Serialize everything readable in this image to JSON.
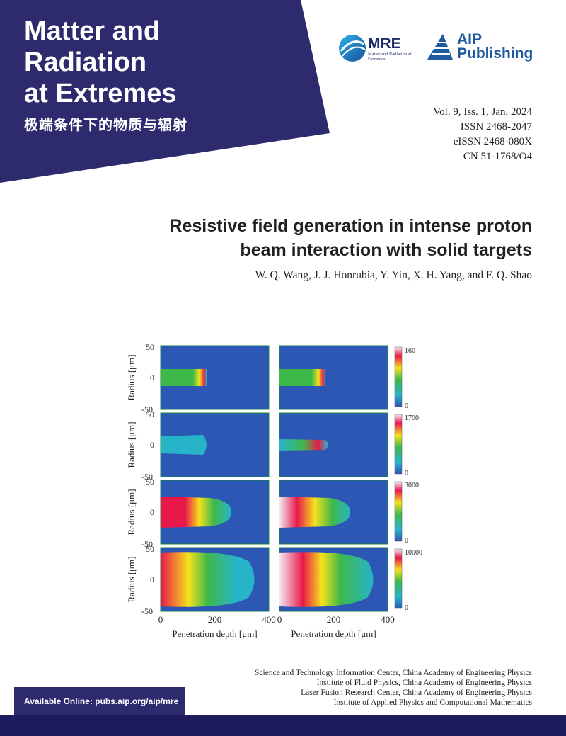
{
  "journal": {
    "title_lines": [
      "Matter and",
      "Radiation",
      "at Extremes"
    ],
    "title_cn": "极端条件下的物质与辐射",
    "banner_color": "#2d2a6e"
  },
  "logos": {
    "mre": {
      "name": "MRE",
      "subtitle": "Matter and Radiation at Extremes",
      "icon": "mre-globe-icon"
    },
    "aip": {
      "line1": "AIP",
      "line2": "Publishing",
      "icon": "aip-wedge-icon",
      "color": "#1e5aa0"
    }
  },
  "pubinfo": [
    "Vol. 9, Iss. 1, Jan. 2024",
    "ISSN 2468-2047",
    "eISSN 2468-080X",
    "CN 51-1768/O4"
  ],
  "article": {
    "title_lines": [
      "Resistive field generation in intense proton",
      "beam interaction with solid targets"
    ],
    "authors": "W. Q. Wang, J. J. Honrubia, Y. Yin, X. H. Yang, and F. Q. Shao"
  },
  "figure": {
    "ylabel": "Radius [μm]",
    "xlabel": "Penetration depth [μm]",
    "y_ticks": [
      "50",
      "0",
      "-50"
    ],
    "x_ticks": [
      "0",
      "200",
      "400"
    ],
    "colorbar_max": [
      "160",
      "1700",
      "3000",
      "10000"
    ],
    "colorbar_min": "0",
    "colors": {
      "background": "#2c57b5",
      "low": "#27b4c8",
      "mid": "#3fb84a",
      "high": "#f7e21b",
      "peak": "#e8194a",
      "top": "#f2e8f2"
    }
  },
  "affiliations": [
    "Science and Technology Information Center, China Academy of Engineering Physics",
    "Institute of Fluid Physics, China Academy of Engineering Physics",
    "Laser Fusion Research Center, China Academy of Engineering Physics",
    "Institute of Applied Physics and Computational Mathematics"
  ],
  "online": "Available Online: pubs.aip.org/aip/mre"
}
